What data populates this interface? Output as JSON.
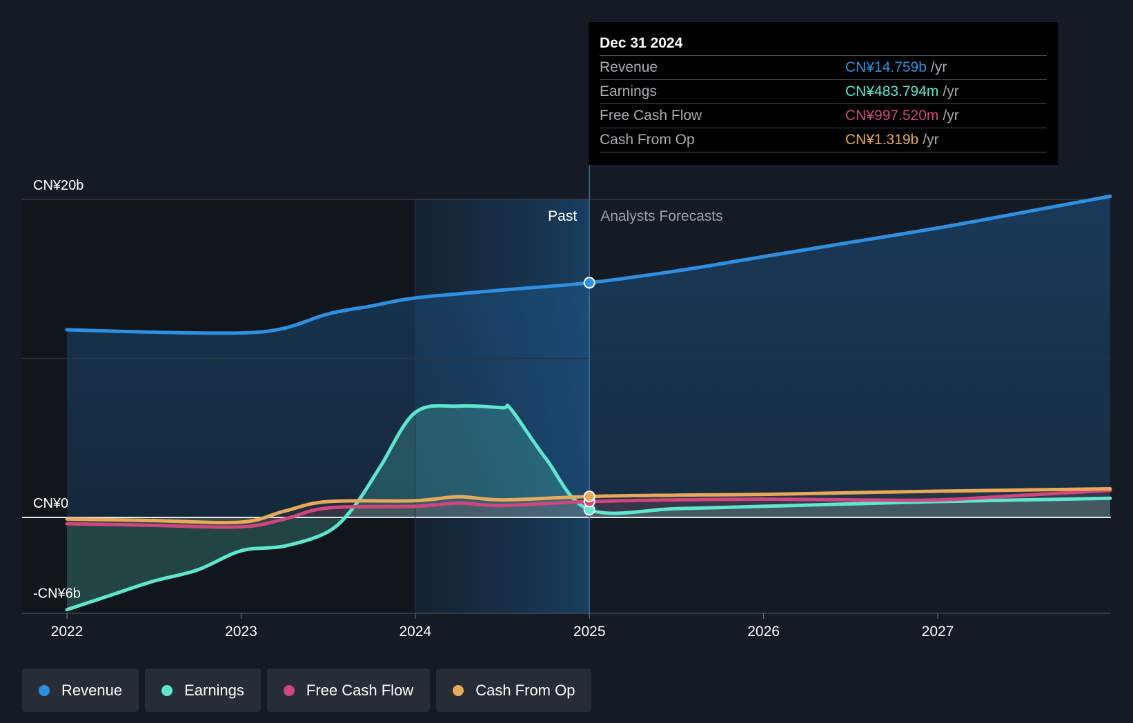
{
  "chart_data": {
    "type": "area",
    "y_axis_labels": [
      "CN¥20b",
      "CN¥0",
      "-CN¥6b"
    ],
    "y_axis_values": [
      20,
      0,
      -6
    ],
    "ylim": [
      -6,
      20
    ],
    "x_ticks": [
      "2022",
      "2023",
      "2024",
      "2025",
      "2026",
      "2027"
    ],
    "x_tick_values": [
      2022,
      2023,
      2024,
      2025,
      2026,
      2027
    ],
    "xlim": [
      2021.75,
      2027.99
    ],
    "highlight_start": 2024,
    "divider_x": 2025,
    "past_label": "Past",
    "forecast_label": "Analysts Forecasts",
    "series": [
      {
        "name": "Revenue",
        "color": "#2f8fe0",
        "points": [
          [
            2022.0,
            11.8
          ],
          [
            2022.5,
            11.65
          ],
          [
            2023.0,
            11.6
          ],
          [
            2023.25,
            11.9
          ],
          [
            2023.5,
            12.8
          ],
          [
            2023.75,
            13.3
          ],
          [
            2024.0,
            13.8
          ],
          [
            2024.5,
            14.3
          ],
          [
            2025.0,
            14.759
          ],
          [
            2025.5,
            15.5
          ],
          [
            2026.0,
            16.4
          ],
          [
            2026.5,
            17.3
          ],
          [
            2027.0,
            18.2
          ],
          [
            2027.5,
            19.2
          ],
          [
            2027.99,
            20.2
          ]
        ]
      },
      {
        "name": "Earnings",
        "color": "#5ee6cf",
        "points": [
          [
            2022.0,
            -5.8
          ],
          [
            2022.25,
            -4.9
          ],
          [
            2022.5,
            -4.0
          ],
          [
            2022.75,
            -3.3
          ],
          [
            2023.0,
            -2.1
          ],
          [
            2023.25,
            -1.8
          ],
          [
            2023.5,
            -0.9
          ],
          [
            2023.65,
            0.7
          ],
          [
            2023.8,
            3.2
          ],
          [
            2024.0,
            6.6
          ],
          [
            2024.25,
            7.0
          ],
          [
            2024.5,
            6.9
          ],
          [
            2024.55,
            6.8
          ],
          [
            2024.75,
            3.7
          ],
          [
            2025.0,
            0.484
          ],
          [
            2025.5,
            0.55
          ],
          [
            2026.0,
            0.7
          ],
          [
            2026.5,
            0.85
          ],
          [
            2027.0,
            1.0
          ],
          [
            2027.99,
            1.2
          ]
        ]
      },
      {
        "name": "Free Cash Flow",
        "color": "#d0467e",
        "points": [
          [
            2022.0,
            -0.4
          ],
          [
            2022.5,
            -0.5
          ],
          [
            2023.0,
            -0.6
          ],
          [
            2023.25,
            -0.1
          ],
          [
            2023.5,
            0.6
          ],
          [
            2024.0,
            0.7
          ],
          [
            2024.25,
            0.9
          ],
          [
            2024.5,
            0.75
          ],
          [
            2025.0,
            0.998
          ],
          [
            2025.5,
            1.1
          ],
          [
            2026.0,
            1.15
          ],
          [
            2026.5,
            1.1
          ],
          [
            2027.0,
            1.1
          ],
          [
            2027.5,
            1.4
          ],
          [
            2027.99,
            1.7
          ]
        ]
      },
      {
        "name": "Cash From Op",
        "color": "#e8aa5a",
        "points": [
          [
            2022.0,
            -0.1
          ],
          [
            2022.5,
            -0.2
          ],
          [
            2023.0,
            -0.3
          ],
          [
            2023.25,
            0.4
          ],
          [
            2023.5,
            1.0
          ],
          [
            2024.0,
            1.05
          ],
          [
            2024.25,
            1.3
          ],
          [
            2024.5,
            1.1
          ],
          [
            2025.0,
            1.319
          ],
          [
            2025.5,
            1.4
          ],
          [
            2026.0,
            1.45
          ],
          [
            2026.5,
            1.55
          ],
          [
            2027.0,
            1.65
          ],
          [
            2027.99,
            1.8
          ]
        ]
      }
    ],
    "tooltip": {
      "date": "Dec 31 2024",
      "unit": "/yr",
      "rows": [
        {
          "label": "Revenue",
          "value": "CN¥14.759b",
          "color": "#2f8fe0"
        },
        {
          "label": "Earnings",
          "value": "CN¥483.794m",
          "color": "#5ee6cf"
        },
        {
          "label": "Free Cash Flow",
          "value": "CN¥997.520m",
          "color": "#d0467e"
        },
        {
          "label": "Cash From Op",
          "value": "CN¥1.319b",
          "color": "#e8aa5a"
        }
      ]
    },
    "legend": [
      {
        "label": "Revenue",
        "color": "#2f8fe0"
      },
      {
        "label": "Earnings",
        "color": "#5ee6cf"
      },
      {
        "label": "Free Cash Flow",
        "color": "#d0467e"
      },
      {
        "label": "Cash From Op",
        "color": "#e8aa5a"
      }
    ]
  }
}
